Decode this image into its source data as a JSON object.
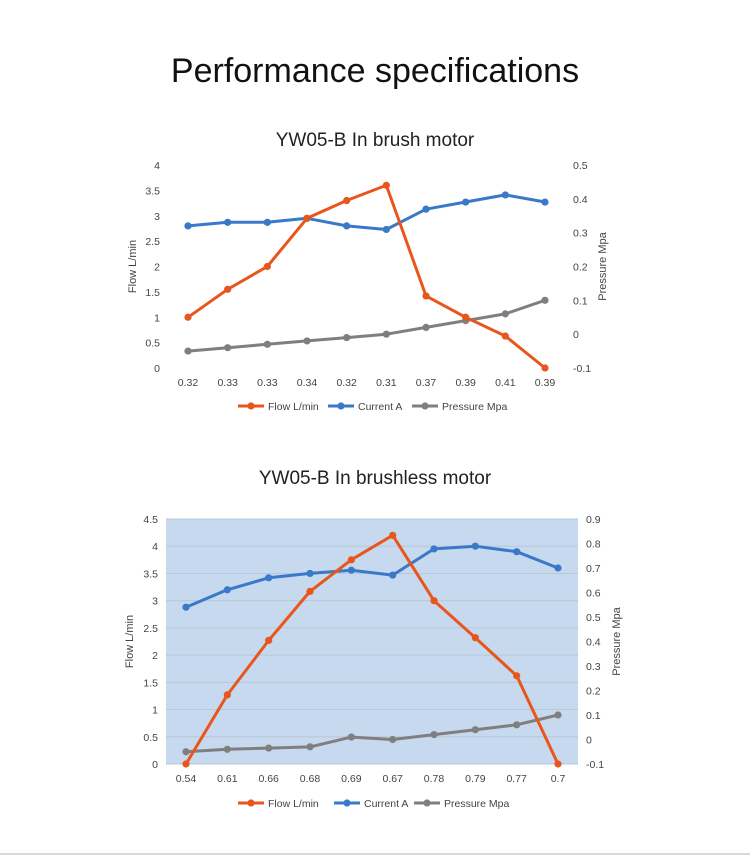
{
  "page": {
    "title": "Performance specifications"
  },
  "colors": {
    "flow": "#E8561C",
    "current": "#3A78C8",
    "pressure": "#7F7F7F",
    "plot_bg_chart2": "#C7D9EE",
    "grid": "#d9d9d9"
  },
  "chart_data": [
    {
      "type": "line",
      "title": "YW05-B In brush motor",
      "categories": [
        "0.32",
        "0.33",
        "0.33",
        "0.34",
        "0.32",
        "0.31",
        "0.37",
        "0.39",
        "0.41",
        "0.39"
      ],
      "ylabel": "Flow  L/min",
      "y2label": "Pressure  Mpa",
      "ylim": [
        0,
        4
      ],
      "yticks": [
        "0",
        "0.5",
        "1",
        "1.5",
        "2",
        "2.5",
        "3",
        "3.5",
        "4"
      ],
      "y2lim": [
        -0.1,
        0.5
      ],
      "y2ticks": [
        "-0.1",
        "0",
        "0.1",
        "0.2",
        "0.3",
        "0.4",
        "0.5"
      ],
      "grid": false,
      "plot_background": "none",
      "legend_position": "bottom",
      "series": [
        {
          "name": "Flow L/min",
          "axis": "left",
          "color_key": "flow",
          "values": [
            1.0,
            1.55,
            2.0,
            2.95,
            3.3,
            3.6,
            1.42,
            1.0,
            0.63,
            0.0
          ]
        },
        {
          "name": "Current A",
          "axis": "left",
          "color_key": "current",
          "values": [
            2.8,
            2.87,
            2.87,
            2.95,
            2.8,
            2.73,
            3.13,
            3.27,
            3.41,
            3.27
          ]
        },
        {
          "name": "Pressure Mpa",
          "axis": "right",
          "color_key": "pressure",
          "values": [
            -0.05,
            -0.04,
            -0.03,
            -0.02,
            -0.01,
            0.0,
            0.02,
            0.04,
            0.06,
            0.1
          ]
        }
      ]
    },
    {
      "type": "line",
      "title": "YW05-B In brushless motor",
      "categories": [
        "0.54",
        "0.61",
        "0.66",
        "0.68",
        "0.69",
        "0.67",
        "0.78",
        "0.79",
        "0.77",
        "0.7"
      ],
      "ylabel": "Flow  L/min",
      "y2label": "Pressure  Mpa",
      "ylim": [
        0,
        4.5
      ],
      "yticks": [
        "0",
        "0.5",
        "1",
        "1.5",
        "2",
        "2.5",
        "3",
        "3.5",
        "4",
        "4.5"
      ],
      "y2lim": [
        -0.1,
        0.9
      ],
      "y2ticks": [
        "-0.1",
        "0",
        "0.1",
        "0.2",
        "0.3",
        "0.4",
        "0.5",
        "0.6",
        "0.7",
        "0.8",
        "0.9"
      ],
      "grid": true,
      "plot_background": "shaded",
      "legend_position": "bottom",
      "series": [
        {
          "name": "Flow L/min",
          "axis": "left",
          "color_key": "flow",
          "values": [
            0.0,
            1.27,
            2.27,
            3.17,
            3.75,
            4.2,
            3.0,
            2.32,
            1.62,
            0.0
          ]
        },
        {
          "name": "Current A",
          "axis": "left",
          "color_key": "current",
          "values": [
            2.88,
            3.2,
            3.42,
            3.5,
            3.56,
            3.47,
            3.95,
            4.0,
            3.9,
            3.6
          ]
        },
        {
          "name": "Pressure Mpa",
          "axis": "right",
          "color_key": "pressure",
          "values": [
            -0.05,
            -0.04,
            -0.035,
            -0.03,
            0.01,
            0.0,
            0.02,
            0.04,
            0.06,
            0.1
          ]
        }
      ]
    }
  ]
}
